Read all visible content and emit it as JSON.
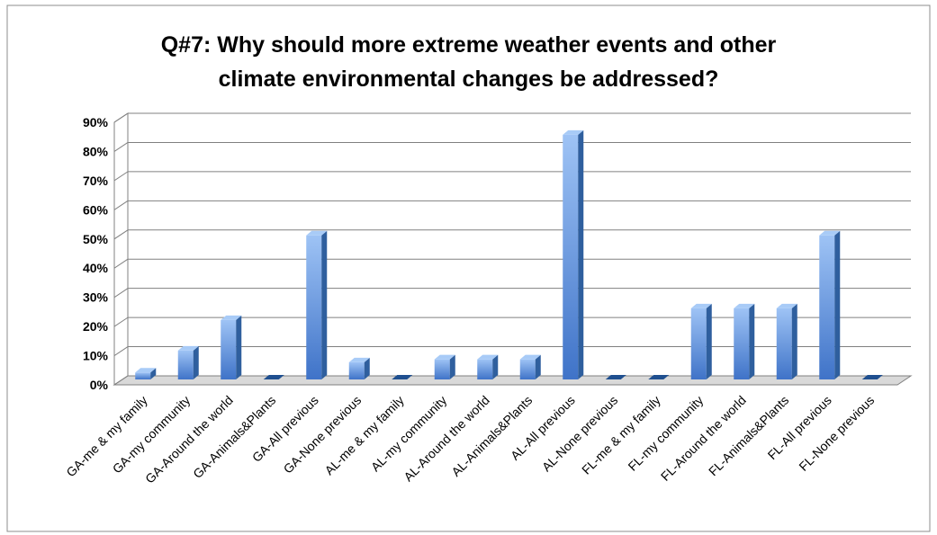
{
  "chart_data": {
    "type": "bar",
    "title_line1": "Q#7: Why should more extreme weather events and other",
    "title_line2": "climate environmental changes be addressed?",
    "categories": [
      "GA-me & my family",
      "GA-my community",
      "GA-Around the world",
      "GA-Animals&Plants",
      "GA-All previous",
      "GA-None previous",
      "AL-me & my family",
      "AL-my community",
      "AL-Around the world",
      "AL-Animals&Plants",
      "AL-All previous",
      "AL-None previous",
      "FL-me & my family",
      "FL-my community",
      "FL-Around the world",
      "FL-Animals&Plants",
      "FL-All previous",
      "FL-None previous"
    ],
    "values": [
      3,
      10.5,
      21,
      0,
      50,
      6.5,
      0,
      7.5,
      7.5,
      7.5,
      84.5,
      0,
      0,
      25,
      25,
      25,
      50,
      0
    ],
    "ylim": [
      0,
      90
    ],
    "y_ticks": [
      "0%",
      "10%",
      "20%",
      "30%",
      "40%",
      "50%",
      "60%",
      "70%",
      "80%",
      "90%"
    ],
    "grid": true,
    "bar_color": "#4f81bd"
  }
}
